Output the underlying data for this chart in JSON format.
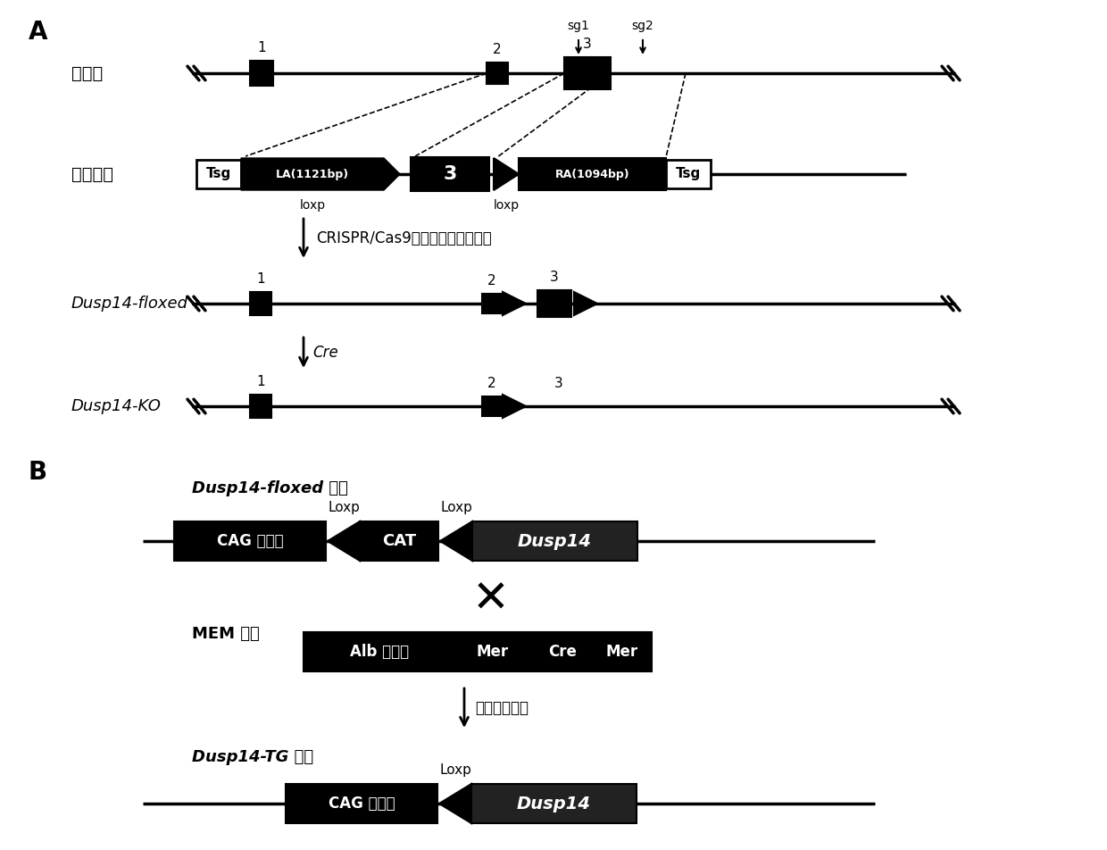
{
  "bg_color": "#ffffff",
  "section_A_label": "A",
  "section_B_label": "B",
  "wildtype_label": "野生型",
  "donor_label": "供体载体",
  "floxed_label": "Dusp14-floxed",
  "ko_label": "Dusp14-KO",
  "crispr_label": "CRISPR/Cas9介导的同源重组修复",
  "cre_label": "Cre",
  "sg1_label": "sg1",
  "sg2_label": "sg2",
  "loxp_label1": "loxp",
  "loxp_label2": "loxp",
  "LA_label": "LA(1121bp)",
  "RA_label": "RA(1094bp)",
  "Tsg_label": "Tsg",
  "floxed_mouse_label": "Dusp14-floxed 小鼠",
  "mem_mouse_label": "MEM 小鼠",
  "tg_mouse_label": "Dusp14-TG 小鼠",
  "tamoxifen_label": "他莫星芬诱导",
  "loxp_B1": "Loxp",
  "loxp_B2": "Loxp",
  "loxp_B3": "Loxp",
  "CAG_label": "CAG 启动子",
  "CAT_label": "CAT",
  "Dusp14_label": "Dusp14",
  "Alb_label": "Alb 启动子",
  "Mer_label1": "Mer",
  "Cre_mid_label": "Cre",
  "Mer_label2": "Mer",
  "cross_symbol": "✕"
}
